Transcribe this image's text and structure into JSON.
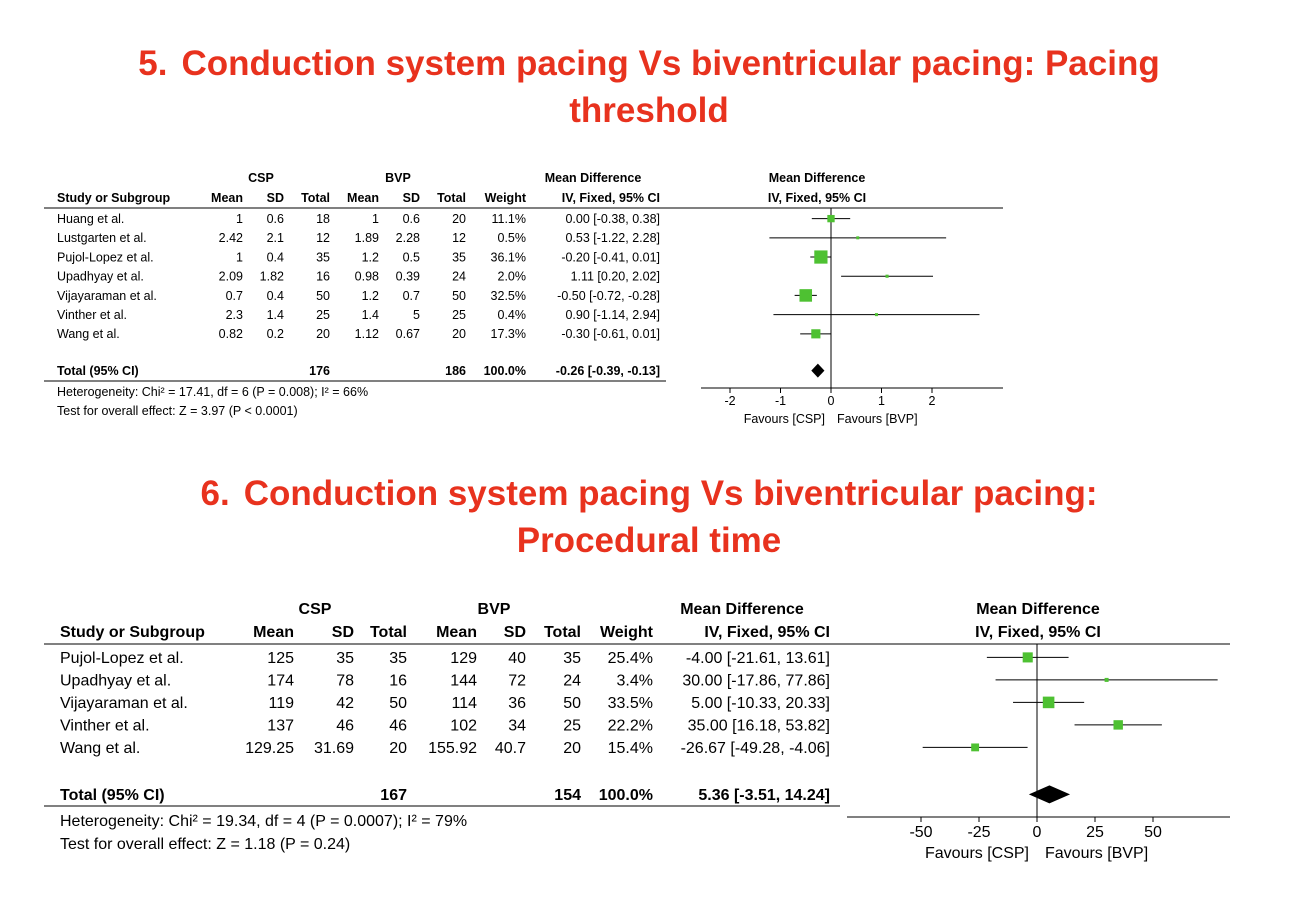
{
  "headings": [
    {
      "number": "5.",
      "line1": "Conduction system pacing Vs biventricular pacing: Pacing",
      "line2": "threshold"
    },
    {
      "number": "6.",
      "line1": "Conduction system pacing Vs biventricular pacing:",
      "line2": "Procedural time"
    }
  ],
  "chart_data": [
    {
      "type": "forest",
      "group_headers": [
        "CSP",
        "BVP",
        "Mean Difference",
        "Mean Difference"
      ],
      "column_headers": [
        "Study or Subgroup",
        "Mean",
        "SD",
        "Total",
        "Mean",
        "SD",
        "Total",
        "Weight",
        "IV, Fixed, 95% CI",
        "IV, Fixed, 95% CI"
      ],
      "studies": [
        {
          "name": "Huang et al.",
          "csp_mean": "1",
          "csp_sd": "0.6",
          "csp_total": "18",
          "bvp_mean": "1",
          "bvp_sd": "0.6",
          "bvp_total": "20",
          "weight": "11.1%",
          "ci_text": "0.00 [-0.38, 0.38]",
          "md": 0.0,
          "lo": -0.38,
          "hi": 0.38,
          "w": 11.1
        },
        {
          "name": "Lustgarten et al.",
          "csp_mean": "2.42",
          "csp_sd": "2.1",
          "csp_total": "12",
          "bvp_mean": "1.89",
          "bvp_sd": "2.28",
          "bvp_total": "12",
          "weight": "0.5%",
          "ci_text": "0.53 [-1.22, 2.28]",
          "md": 0.53,
          "lo": -1.22,
          "hi": 2.28,
          "w": 0.5
        },
        {
          "name": "Pujol-Lopez et al.",
          "csp_mean": "1",
          "csp_sd": "0.4",
          "csp_total": "35",
          "bvp_mean": "1.2",
          "bvp_sd": "0.5",
          "bvp_total": "35",
          "weight": "36.1%",
          "ci_text": "-0.20 [-0.41, 0.01]",
          "md": -0.2,
          "lo": -0.41,
          "hi": 0.01,
          "w": 36.1
        },
        {
          "name": "Upadhyay et al.",
          "csp_mean": "2.09",
          "csp_sd": "1.82",
          "csp_total": "16",
          "bvp_mean": "0.98",
          "bvp_sd": "0.39",
          "bvp_total": "24",
          "weight": "2.0%",
          "ci_text": "1.11 [0.20, 2.02]",
          "md": 1.11,
          "lo": 0.2,
          "hi": 2.02,
          "w": 2.0
        },
        {
          "name": "Vijayaraman et al.",
          "csp_mean": "0.7",
          "csp_sd": "0.4",
          "csp_total": "50",
          "bvp_mean": "1.2",
          "bvp_sd": "0.7",
          "bvp_total": "50",
          "weight": "32.5%",
          "ci_text": "-0.50 [-0.72, -0.28]",
          "md": -0.5,
          "lo": -0.72,
          "hi": -0.28,
          "w": 32.5
        },
        {
          "name": "Vinther et al.",
          "csp_mean": "2.3",
          "csp_sd": "1.4",
          "csp_total": "25",
          "bvp_mean": "1.4",
          "bvp_sd": "5",
          "bvp_total": "25",
          "weight": "0.4%",
          "ci_text": "0.90 [-1.14, 2.94]",
          "md": 0.9,
          "lo": -1.14,
          "hi": 2.94,
          "w": 0.4
        },
        {
          "name": "Wang et al.",
          "csp_mean": "0.82",
          "csp_sd": "0.2",
          "csp_total": "20",
          "bvp_mean": "1.12",
          "bvp_sd": "0.67",
          "bvp_total": "20",
          "weight": "17.3%",
          "ci_text": "-0.30 [-0.61, 0.01]",
          "md": -0.3,
          "lo": -0.61,
          "hi": 0.01,
          "w": 17.3
        }
      ],
      "total": {
        "label": "Total (95% CI)",
        "csp_total": "176",
        "bvp_total": "186",
        "weight": "100.0%",
        "ci_text": "-0.26 [-0.39, -0.13]",
        "md": -0.26,
        "lo": -0.39,
        "hi": -0.13
      },
      "heterogeneity": "Heterogeneity: Chi² = 17.41, df = 6 (P = 0.008); I² = 66%",
      "overall_effect": "Test for overall effect: Z = 3.97 (P < 0.0001)",
      "axis": {
        "ticks": [
          -2,
          -1,
          0,
          1,
          2
        ],
        "tick_labels": [
          "-2",
          "-1",
          "0",
          "1",
          "2"
        ],
        "xlim": [
          -2.9,
          3.2
        ]
      },
      "favours_left": "Favours [CSP]",
      "favours_right": "Favours [BVP]",
      "colors": {
        "square": "#4ec132",
        "diamond": "#000000"
      }
    },
    {
      "type": "forest",
      "group_headers": [
        "CSP",
        "BVP",
        "Mean Difference",
        "Mean Difference"
      ],
      "column_headers": [
        "Study or Subgroup",
        "Mean",
        "SD",
        "Total",
        "Mean",
        "SD",
        "Total",
        "Weight",
        "IV, Fixed, 95% CI",
        "IV, Fixed, 95% CI"
      ],
      "studies": [
        {
          "name": "Pujol-Lopez et al.",
          "csp_mean": "125",
          "csp_sd": "35",
          "csp_total": "35",
          "bvp_mean": "129",
          "bvp_sd": "40",
          "bvp_total": "35",
          "weight": "25.4%",
          "ci_text": "-4.00 [-21.61, 13.61]",
          "md": -4.0,
          "lo": -21.61,
          "hi": 13.61,
          "w": 25.4
        },
        {
          "name": "Upadhyay et al.",
          "csp_mean": "174",
          "csp_sd": "78",
          "csp_total": "16",
          "bvp_mean": "144",
          "bvp_sd": "72",
          "bvp_total": "24",
          "weight": "3.4%",
          "ci_text": "30.00 [-17.86, 77.86]",
          "md": 30.0,
          "lo": -17.86,
          "hi": 77.86,
          "w": 3.4
        },
        {
          "name": "Vijayaraman et al.",
          "csp_mean": "119",
          "csp_sd": "42",
          "csp_total": "50",
          "bvp_mean": "114",
          "bvp_sd": "36",
          "bvp_total": "50",
          "weight": "33.5%",
          "ci_text": "5.00 [-10.33, 20.33]",
          "md": 5.0,
          "lo": -10.33,
          "hi": 20.33,
          "w": 33.5
        },
        {
          "name": "Vinther et al.",
          "csp_mean": "137",
          "csp_sd": "46",
          "csp_total": "46",
          "bvp_mean": "102",
          "bvp_sd": "34",
          "bvp_total": "25",
          "weight": "22.2%",
          "ci_text": "35.00 [16.18, 53.82]",
          "md": 35.0,
          "lo": 16.18,
          "hi": 53.82,
          "w": 22.2
        },
        {
          "name": "Wang et al.",
          "csp_mean": "129.25",
          "csp_sd": "31.69",
          "csp_total": "20",
          "bvp_mean": "155.92",
          "bvp_sd": "40.7",
          "bvp_total": "20",
          "weight": "15.4%",
          "ci_text": "-26.67 [-49.28, -4.06]",
          "md": -26.67,
          "lo": -49.28,
          "hi": -4.06,
          "w": 15.4
        }
      ],
      "total": {
        "label": "Total (95% CI)",
        "csp_total": "167",
        "bvp_total": "154",
        "weight": "100.0%",
        "ci_text": "5.36 [-3.51, 14.24]",
        "md": 5.36,
        "lo": -3.51,
        "hi": 14.24
      },
      "heterogeneity": "Heterogeneity: Chi² = 19.34, df = 4 (P = 0.0007); I² = 79%",
      "overall_effect": "Test for overall effect: Z = 1.18 (P = 0.24)",
      "axis": {
        "ticks": [
          -50,
          -25,
          0,
          25,
          50
        ],
        "tick_labels": [
          "-50",
          "-25",
          "0",
          "25",
          "50"
        ],
        "xlim": [
          -83,
          85
        ]
      },
      "favours_left": "Favours [CSP]",
      "favours_right": "Favours [BVP]",
      "colors": {
        "square": "#4ec132",
        "diamond": "#000000"
      }
    }
  ]
}
